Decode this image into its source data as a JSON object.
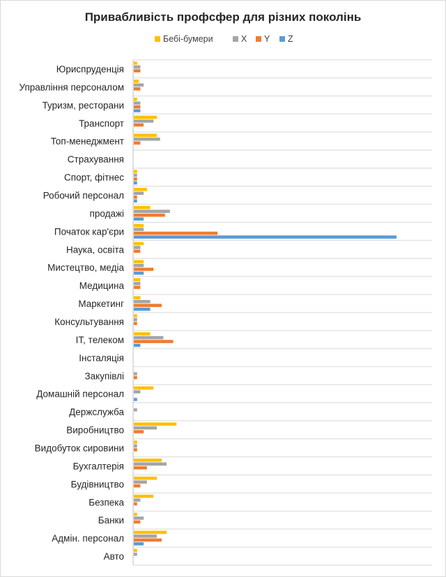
{
  "chart_data": {
    "type": "bar",
    "orientation": "horizontal",
    "title": "Привабливість профсфер для різних поколінь",
    "legend_position": "top",
    "grid": true,
    "xlim": [
      0,
      80
    ],
    "categories": [
      "Юриспруденція",
      "Управління персоналом",
      "Туризм, ресторани",
      "Транспорт",
      "Топ-менеджмент",
      "Страхування",
      "Спорт, фітнес",
      "Робочий персонал",
      "продажі",
      "Початок кар'єри",
      "Наука, освіта",
      "Мистецтво, медіа",
      "Медицина",
      "Маркетинг",
      "Консультування",
      "IT, телеком",
      "Інсталяція",
      "Закупівлі",
      "Домашній персонал",
      "Держслужба",
      "Виробництво",
      "Видобуток сировини",
      "Бухгалтерія",
      "Будівництво",
      "Безпека",
      "Банки",
      "Адмін. персонал",
      "Авто"
    ],
    "series": [
      {
        "name": "Бебі-бумери",
        "color": "#ffc000",
        "values": [
          1,
          1.5,
          1,
          7,
          7,
          0,
          1,
          4,
          5,
          3,
          3,
          3,
          2,
          2,
          1,
          5,
          0,
          0,
          6,
          0,
          13,
          1,
          8.5,
          7,
          6,
          1,
          10,
          1
        ]
      },
      {
        "name": "X",
        "color": "#a5a5a5",
        "values": [
          2,
          3,
          2,
          6,
          8,
          0,
          1,
          3,
          11,
          3,
          2,
          3,
          2,
          5,
          1,
          9,
          0,
          1,
          2,
          1,
          7,
          1,
          10,
          4,
          2,
          3,
          7,
          1
        ]
      },
      {
        "name": "Y",
        "color": "#ed7d31",
        "values": [
          2,
          2,
          2,
          3,
          2,
          0,
          1,
          1,
          9.5,
          25.5,
          2,
          6,
          2,
          8.5,
          1,
          12,
          0,
          1,
          0,
          0,
          3,
          1,
          4,
          2,
          1,
          2,
          8.5,
          0
        ]
      },
      {
        "name": "Z",
        "color": "#5b9bd5",
        "values": [
          0,
          0,
          2,
          0,
          0,
          0,
          1,
          1,
          3,
          80,
          0,
          3,
          0,
          5,
          0,
          2,
          0,
          0,
          1,
          0,
          0,
          0,
          0,
          0,
          0,
          0,
          3,
          0
        ]
      }
    ]
  }
}
